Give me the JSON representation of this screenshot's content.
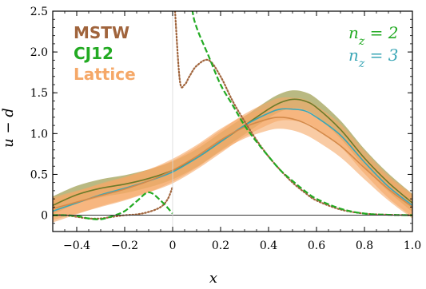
{
  "chart_data": {
    "type": "line",
    "xlabel": "x",
    "ylabel": "u − d",
    "xlim": [
      -0.5,
      1.0
    ],
    "ylim": [
      -0.2,
      2.5
    ],
    "xticks": [
      -0.4,
      -0.2,
      0,
      0.2,
      0.4,
      0.6,
      0.8,
      1.0
    ],
    "xtick_labels": [
      "−0.4",
      "−0.2",
      "0",
      "0.2",
      "0.4",
      "0.6",
      "0.8",
      "1.0"
    ],
    "yticks": [
      0,
      0.5,
      1.0,
      1.5,
      2.0,
      2.5
    ],
    "ytick_labels": [
      "0",
      "0.5",
      "1.0",
      "1.5",
      "2.0",
      "2.5"
    ],
    "legend": [
      {
        "label": "MSTW",
        "color": "#a0643c"
      },
      {
        "label": "CJ12",
        "color": "#22aa22"
      },
      {
        "label": "Lattice",
        "color": "#f5a868"
      }
    ],
    "annotations": [
      {
        "text": "n_z = 2",
        "color": "#22aa22"
      },
      {
        "text": "n_z = 3",
        "color": "#3aa6b6"
      }
    ],
    "series": [
      {
        "name": "MSTW",
        "style": "dotted",
        "color": "#a0643c",
        "x": [
          -0.5,
          -0.45,
          -0.4,
          -0.35,
          -0.3,
          -0.25,
          -0.2,
          -0.15,
          -0.1,
          -0.05,
          -0.02,
          0,
          0.01,
          0.03,
          0.05,
          0.07,
          0.1,
          0.15,
          0.2,
          0.25,
          0.3,
          0.35,
          0.4,
          0.45,
          0.5,
          0.55,
          0.6,
          0.7,
          0.8,
          0.9,
          1.0
        ],
        "y": [
          0,
          0,
          -0.02,
          -0.04,
          -0.04,
          -0.02,
          0,
          0.01,
          0.04,
          0.1,
          0.2,
          0.35,
          2.5,
          1.65,
          1.6,
          1.7,
          1.83,
          1.9,
          1.7,
          1.4,
          1.15,
          0.92,
          0.72,
          0.55,
          0.4,
          0.28,
          0.18,
          0.07,
          0.02,
          0.005,
          0
        ]
      },
      {
        "name": "CJ12",
        "style": "dashed",
        "color": "#22aa22",
        "x": [
          -0.5,
          -0.45,
          -0.4,
          -0.35,
          -0.3,
          -0.25,
          -0.2,
          -0.15,
          -0.1,
          -0.05,
          0,
          0.05,
          0.08,
          0.1,
          0.15,
          0.2,
          0.25,
          0.3,
          0.35,
          0.4,
          0.45,
          0.5,
          0.55,
          0.6,
          0.7,
          0.8,
          0.9,
          1.0
        ],
        "y": [
          0,
          0,
          -0.01,
          -0.04,
          -0.05,
          -0.01,
          0.05,
          0.17,
          0.28,
          0.18,
          0.02,
          3.2,
          2.55,
          2.3,
          1.95,
          1.6,
          1.35,
          1.1,
          0.9,
          0.72,
          0.55,
          0.42,
          0.3,
          0.2,
          0.08,
          0.02,
          0.005,
          0
        ]
      },
      {
        "name": "Lattice n_z = 2",
        "style": "band",
        "color": "#6b7a2a",
        "fill": "#8a8a2e",
        "x": [
          -0.5,
          -0.4,
          -0.3,
          -0.2,
          -0.1,
          0,
          0.1,
          0.2,
          0.3,
          0.4,
          0.45,
          0.5,
          0.55,
          0.6,
          0.7,
          0.8,
          0.9,
          1.0
        ],
        "y": [
          0.12,
          0.25,
          0.33,
          0.38,
          0.45,
          0.55,
          0.7,
          0.9,
          1.1,
          1.3,
          1.38,
          1.42,
          1.4,
          1.32,
          1.05,
          0.7,
          0.4,
          0.15
        ],
        "band_halfwidth": 0.11
      },
      {
        "name": "Lattice n_z = 3",
        "style": "band",
        "color": "#3aa6b6",
        "fill": "#f5a868",
        "x": [
          -0.5,
          -0.4,
          -0.3,
          -0.2,
          -0.1,
          0,
          0.1,
          0.2,
          0.3,
          0.4,
          0.45,
          0.5,
          0.55,
          0.6,
          0.7,
          0.8,
          0.9,
          1.0
        ],
        "y": [
          0.05,
          0.15,
          0.25,
          0.33,
          0.42,
          0.53,
          0.7,
          0.9,
          1.1,
          1.25,
          1.3,
          1.3,
          1.28,
          1.2,
          0.98,
          0.65,
          0.35,
          0.12
        ],
        "band_halfwidth": 0.14
      },
      {
        "name": "Lattice central",
        "style": "band",
        "color": "#d48a4a",
        "fill": "#f5a868",
        "x": [
          -0.5,
          -0.4,
          -0.3,
          -0.2,
          -0.1,
          0,
          0.1,
          0.2,
          0.3,
          0.4,
          0.45,
          0.5,
          0.55,
          0.6,
          0.7,
          0.8,
          0.9,
          1.0
        ],
        "y": [
          0.08,
          0.16,
          0.24,
          0.32,
          0.42,
          0.55,
          0.72,
          0.92,
          1.08,
          1.18,
          1.2,
          1.18,
          1.13,
          1.05,
          0.85,
          0.58,
          0.32,
          0.1
        ],
        "band_halfwidth": 0.14
      }
    ],
    "grid": false
  }
}
